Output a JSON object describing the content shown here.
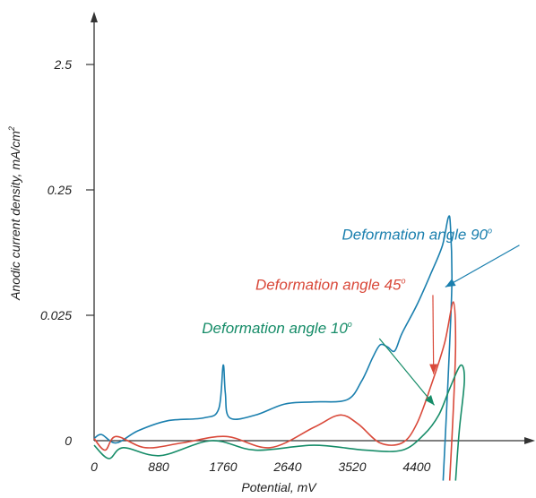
{
  "chart_data": {
    "type": "line",
    "title": "",
    "xlabel": "Potential, mV",
    "ylabel": "Anodic current density, mA/cm",
    "ylabel_sup": "2",
    "x_ticks": [
      "0",
      "880",
      "1760",
      "2640",
      "3520",
      "4400"
    ],
    "y_ticks": [
      "0",
      "0.025",
      "0.25",
      "2.5"
    ],
    "y_scale": "log",
    "grid": false,
    "series": [
      {
        "name": "Deformation angle 90",
        "color": "#1a7fae",
        "points": [
          [
            0,
            0.0026
          ],
          [
            100,
            0.0028
          ],
          [
            300,
            0.0024
          ],
          [
            600,
            0.003
          ],
          [
            1000,
            0.0036
          ],
          [
            1500,
            0.0038
          ],
          [
            1700,
            0.0045
          ],
          [
            1760,
            0.01
          ],
          [
            1790,
            0.006
          ],
          [
            1850,
            0.0038
          ],
          [
            2200,
            0.004
          ],
          [
            2600,
            0.0049
          ],
          [
            3000,
            0.0051
          ],
          [
            3450,
            0.0053
          ],
          [
            3650,
            0.0075
          ],
          [
            3800,
            0.0115
          ],
          [
            3900,
            0.0145
          ],
          [
            4000,
            0.014
          ],
          [
            4100,
            0.013
          ],
          [
            4200,
            0.018
          ],
          [
            4400,
            0.03
          ],
          [
            4600,
            0.055
          ],
          [
            4750,
            0.09
          ],
          [
            4830,
            0.15
          ],
          [
            4860,
            0.13
          ],
          [
            4880,
            0.048
          ],
          [
            4850,
            0.015
          ],
          [
            4800,
            0.0035
          ],
          [
            4760,
            0.0012
          ]
        ]
      },
      {
        "name": "Deformation angle 45",
        "color": "#d9493a",
        "points": [
          [
            0,
            0.0026
          ],
          [
            150,
            0.0021
          ],
          [
            300,
            0.0027
          ],
          [
            700,
            0.0022
          ],
          [
            1200,
            0.0024
          ],
          [
            1800,
            0.0027
          ],
          [
            2400,
            0.0022
          ],
          [
            3000,
            0.0032
          ],
          [
            3350,
            0.004
          ],
          [
            3600,
            0.0034
          ],
          [
            3900,
            0.0024
          ],
          [
            4200,
            0.0024
          ],
          [
            4400,
            0.0034
          ],
          [
            4600,
            0.007
          ],
          [
            4780,
            0.015
          ],
          [
            4900,
            0.032
          ],
          [
            4930,
            0.015
          ],
          [
            4900,
            0.0045
          ],
          [
            4850,
            0.0012
          ]
        ]
      },
      {
        "name": "Deformation angle 10",
        "color": "#168c68",
        "points": [
          [
            0,
            0.0023
          ],
          [
            200,
            0.0018
          ],
          [
            400,
            0.0022
          ],
          [
            900,
            0.0019
          ],
          [
            1600,
            0.0025
          ],
          [
            2200,
            0.0021
          ],
          [
            3000,
            0.0023
          ],
          [
            3700,
            0.0021
          ],
          [
            4200,
            0.0021
          ],
          [
            4500,
            0.0028
          ],
          [
            4700,
            0.004
          ],
          [
            4850,
            0.0065
          ],
          [
            5000,
            0.01
          ],
          [
            5050,
            0.0075
          ],
          [
            4980,
            0.003
          ],
          [
            4930,
            0.0012
          ]
        ]
      }
    ],
    "annotations": [
      {
        "text": "Deformation angle 90",
        "sup": "o",
        "color": "#1a7fae",
        "label_at": [
          3380,
          0.1
        ],
        "arrow_to": [
          4790,
          0.042
        ]
      },
      {
        "text": "Deformation angle 45",
        "sup": "o",
        "color": "#d9493a",
        "label_at": [
          2200,
          0.04
        ],
        "arrow_to": [
          4630,
          0.0085
        ]
      },
      {
        "text": "Deformation angle 10",
        "sup": "o",
        "color": "#168c68",
        "label_at": [
          1470,
          0.018
        ],
        "arrow_to": [
          4640,
          0.0048
        ]
      }
    ]
  }
}
